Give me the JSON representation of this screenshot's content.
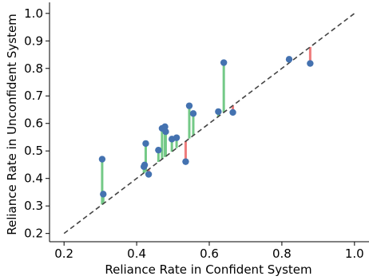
{
  "chart_data": {
    "type": "scatter",
    "title": "",
    "xlabel": "Reliance Rate in Confident System",
    "ylabel": "Reliance Rate in Unconfident System",
    "xlim": [
      0.16,
      1.04
    ],
    "ylim": [
      0.17,
      1.04
    ],
    "xticks": [
      "0.2",
      "0.4",
      "0.6",
      "0.8",
      "1.0"
    ],
    "yticks": [
      "0.2",
      "0.3",
      "0.4",
      "0.5",
      "0.6",
      "0.7",
      "0.8",
      "0.9",
      "1.0"
    ],
    "grid": false,
    "reference_line": {
      "from": [
        0.2,
        0.2
      ],
      "to": [
        1.0,
        1.0
      ],
      "style": "dashed",
      "color": "#444444"
    },
    "colors": {
      "point": "#4472b0",
      "above_diagonal": "#74c987",
      "below_diagonal": "#ee7c7c"
    },
    "points": [
      {
        "x": 0.305,
        "y": 0.47
      },
      {
        "x": 0.308,
        "y": 0.343
      },
      {
        "x": 0.42,
        "y": 0.443
      },
      {
        "x": 0.422,
        "y": 0.449
      },
      {
        "x": 0.425,
        "y": 0.527
      },
      {
        "x": 0.433,
        "y": 0.415
      },
      {
        "x": 0.46,
        "y": 0.503
      },
      {
        "x": 0.47,
        "y": 0.582
      },
      {
        "x": 0.478,
        "y": 0.588
      },
      {
        "x": 0.48,
        "y": 0.57
      },
      {
        "x": 0.497,
        "y": 0.543
      },
      {
        "x": 0.51,
        "y": 0.548
      },
      {
        "x": 0.535,
        "y": 0.461
      },
      {
        "x": 0.545,
        "y": 0.664
      },
      {
        "x": 0.556,
        "y": 0.636
      },
      {
        "x": 0.625,
        "y": 0.643
      },
      {
        "x": 0.64,
        "y": 0.821
      },
      {
        "x": 0.665,
        "y": 0.64
      },
      {
        "x": 0.82,
        "y": 0.833
      },
      {
        "x": 0.878,
        "y": 0.818
      }
    ]
  }
}
